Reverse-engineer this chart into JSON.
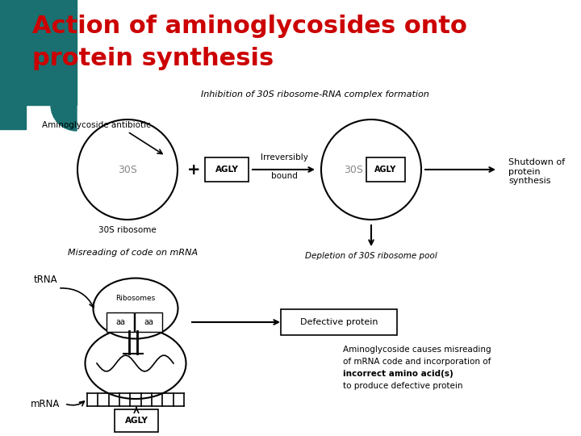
{
  "title_line1": "Action of aminoglycosides onto",
  "title_line2": "protein synthesis",
  "title_color": "#cc0000",
  "title_fontsize": 22,
  "bg_color": "#ffffff",
  "teal_color": "#1a7070",
  "section1_title": "Inhibition of 30S ribosome-RNA complex formation",
  "section2_label": "Misreading of code on mRNA",
  "section3_label": "Depletion of 30S ribosome pool",
  "label_aminoglycoside": "Aminoglycoside antibiotic",
  "label_30S_ribosome": "30S ribosome",
  "label_irreversibly": "Irreversibly",
  "label_bound": "bound",
  "label_shutdown": "Shutdown of\nprotein\nsynthesis",
  "label_defective": "Defective protein",
  "label_tRNA": "tRNA",
  "label_mRNA": "mRNA",
  "label_ribosomes": "Ribosomes",
  "label_agly_note_1": "Aminoglycoside causes misreading",
  "label_agly_note_2": "of mRNA code and incorporation of",
  "label_agly_note_3": "incorrect amino acid(s)",
  "label_agly_note_4": "to produce defective protein"
}
